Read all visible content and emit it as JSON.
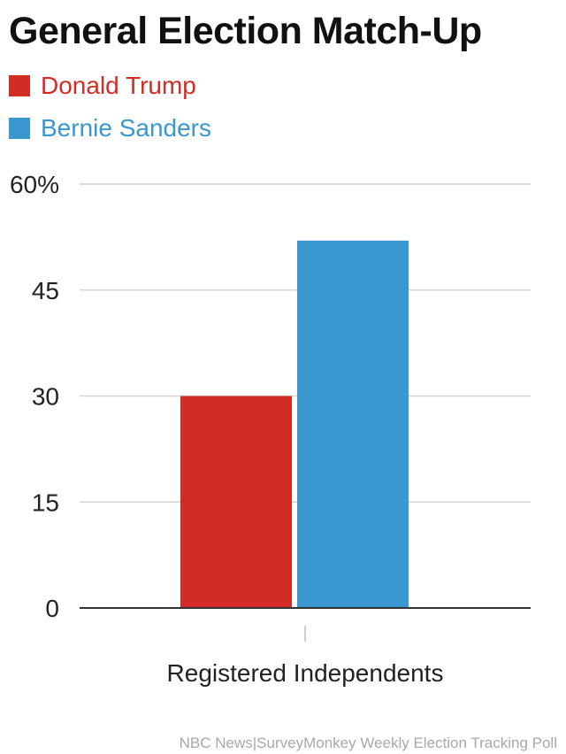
{
  "title": "General Election Match-Up",
  "source": "NBC News|SurveyMonkey Weekly Election Tracking Poll",
  "legend": [
    {
      "label": "Donald Trump",
      "color": "#d12d26"
    },
    {
      "label": "Bernie Sanders",
      "color": "#3a97d0"
    }
  ],
  "chart_data": {
    "type": "bar",
    "categories": [
      "Registered Independents"
    ],
    "series": [
      {
        "name": "Donald Trump",
        "values": [
          30
        ],
        "color": "#d12d26"
      },
      {
        "name": "Bernie Sanders",
        "values": [
          52
        ],
        "color": "#3a97d0"
      }
    ],
    "ylim": [
      0,
      60
    ],
    "yticks": [
      0,
      15,
      30,
      45,
      60
    ],
    "ytick_labels": [
      "0",
      "15",
      "30",
      "45",
      "60%"
    ],
    "grid": true,
    "legend_position": "top-left",
    "xlabel": "",
    "ylabel": ""
  }
}
